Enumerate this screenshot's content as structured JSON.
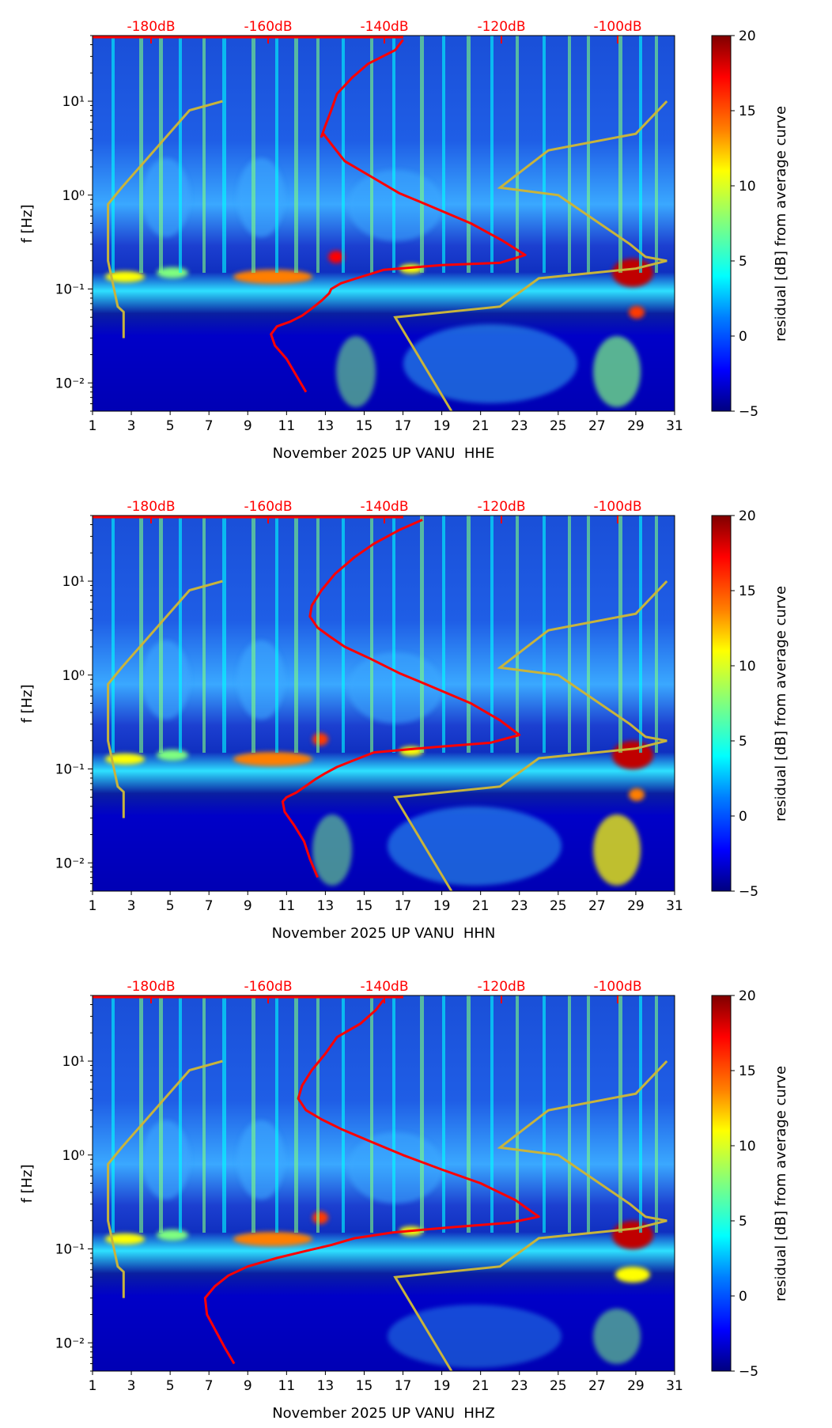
{
  "colors": {
    "db_scale": "#ff0000",
    "mean_curve": "#ff0000",
    "model_curves": "#c8b43c",
    "axis": "#000000",
    "colormap": [
      "#00007f",
      "#0000ff",
      "#007fff",
      "#00ffff",
      "#7fff7f",
      "#ffff00",
      "#ff7f00",
      "#ff0000",
      "#7f0000"
    ]
  },
  "chart_data": [
    {
      "type": "heatmap",
      "xlabel": "November 2025 UP VANU  HHE",
      "ylabel": "f [Hz]",
      "x_ticks": [
        "1",
        "3",
        "5",
        "7",
        "9",
        "11",
        "13",
        "15",
        "17",
        "19",
        "21",
        "23",
        "25",
        "27",
        "29",
        "31"
      ],
      "y_ticks": [
        "10⁻²",
        "10⁻¹",
        "10⁰",
        "10¹"
      ],
      "xlim": [
        1,
        31
      ],
      "ylim": [
        0.005,
        50
      ],
      "y_scale": "log",
      "db_scale_labels": [
        "-180dB",
        "-160dB",
        "-140dB",
        "-120dB",
        "-100dB"
      ],
      "colorbar": {
        "label": "residual [dB] from average curve",
        "range": [
          -5,
          20
        ],
        "ticks": [
          "−5",
          "0",
          "5",
          "10",
          "15",
          "20"
        ]
      },
      "mean_curve_x": [
        17,
        16.6,
        15.2,
        14.4,
        13.6,
        13.3,
        13.0,
        12.8,
        12.9,
        13.3,
        14.0,
        15.3,
        16.8,
        18.5,
        20.5,
        22.1,
        23.3,
        22.0,
        19.0,
        16.0,
        14.6,
        13.8,
        13.3,
        13.2,
        12.8,
        12.3,
        11.8,
        11.2,
        10.5,
        10.2,
        10.4,
        11.0,
        11.5,
        12.0
      ],
      "mean_curve_y": [
        45,
        35,
        25,
        18,
        12,
        8,
        5.5,
        4.2,
        4.5,
        3.5,
        2.3,
        1.6,
        1.05,
        0.75,
        0.5,
        0.33,
        0.23,
        0.19,
        0.18,
        0.16,
        0.13,
        0.115,
        0.1,
        0.09,
        0.075,
        0.062,
        0.052,
        0.045,
        0.04,
        0.033,
        0.025,
        0.018,
        0.012,
        0.008
      ]
    },
    {
      "type": "heatmap",
      "xlabel": "November 2025 UP VANU  HHN",
      "ylabel": "f [Hz]",
      "x_ticks": [
        "1",
        "3",
        "5",
        "7",
        "9",
        "11",
        "13",
        "15",
        "17",
        "19",
        "21",
        "23",
        "25",
        "27",
        "29",
        "31"
      ],
      "y_ticks": [
        "10⁻²",
        "10⁻¹",
        "10⁰",
        "10¹"
      ],
      "xlim": [
        1,
        31
      ],
      "ylim": [
        0.005,
        50
      ],
      "y_scale": "log",
      "db_scale_labels": [
        "-180dB",
        "-160dB",
        "-140dB",
        "-120dB",
        "-100dB"
      ],
      "colorbar": {
        "label": "residual [dB] from average curve",
        "range": [
          -5,
          20
        ],
        "ticks": [
          "−5",
          "0",
          "5",
          "10",
          "15",
          "20"
        ]
      },
      "mean_curve_x": [
        18,
        16.8,
        15.5,
        14.5,
        13.5,
        12.8,
        12.3,
        12.2,
        12.6,
        13.2,
        14.0,
        15.3,
        16.8,
        18.5,
        20.5,
        22.0,
        23.0,
        21.5,
        18.5,
        15.5,
        14.3,
        13.6,
        13.0,
        12.5,
        12.0,
        11.5,
        11.0,
        10.8,
        10.9,
        11.4,
        11.9,
        12.2,
        12.6
      ],
      "mean_curve_y": [
        45,
        35,
        25,
        18,
        12,
        8,
        5.5,
        4.2,
        3.2,
        2.6,
        2.0,
        1.5,
        1.05,
        0.75,
        0.5,
        0.33,
        0.23,
        0.19,
        0.17,
        0.15,
        0.12,
        0.105,
        0.09,
        0.078,
        0.066,
        0.056,
        0.05,
        0.045,
        0.035,
        0.025,
        0.017,
        0.011,
        0.007
      ]
    },
    {
      "type": "heatmap",
      "xlabel": "November 2025 UP VANU  HHZ",
      "ylabel": "f [Hz]",
      "x_ticks": [
        "1",
        "3",
        "5",
        "7",
        "9",
        "11",
        "13",
        "15",
        "17",
        "19",
        "21",
        "23",
        "25",
        "27",
        "29",
        "31"
      ],
      "y_ticks": [
        "10⁻²",
        "10⁻¹",
        "10⁰",
        "10¹"
      ],
      "xlim": [
        1,
        31
      ],
      "ylim": [
        0.005,
        50
      ],
      "y_scale": "log",
      "db_scale_labels": [
        "-180dB",
        "-160dB",
        "-140dB",
        "-120dB",
        "-100dB"
      ],
      "colorbar": {
        "label": "residual [dB] from average curve",
        "range": [
          -5,
          20
        ],
        "ticks": [
          "−5",
          "0",
          "5",
          "10",
          "15",
          "20"
        ]
      },
      "mean_curve_x": [
        16,
        15.6,
        14.8,
        13.6,
        13.0,
        12.3,
        11.8,
        11.6,
        12.0,
        12.8,
        13.8,
        15.3,
        17.0,
        19.0,
        21.0,
        22.8,
        24.0,
        22.5,
        19.5,
        16.5,
        14.5,
        13.3,
        12.0,
        10.5,
        9.0,
        8.0,
        7.3,
        6.8,
        6.9,
        7.3,
        7.8,
        8.3
      ],
      "mean_curve_y": [
        45,
        35,
        25,
        18,
        12,
        8,
        5.5,
        4.0,
        3.0,
        2.4,
        1.9,
        1.4,
        1.0,
        0.7,
        0.5,
        0.33,
        0.22,
        0.19,
        0.17,
        0.15,
        0.13,
        0.11,
        0.095,
        0.08,
        0.065,
        0.052,
        0.04,
        0.03,
        0.02,
        0.014,
        0.009,
        0.006
      ]
    }
  ],
  "model_curves": {
    "x": [
      [
        19.5,
        16.6,
        22.0,
        24.0,
        29.0,
        30.6,
        29.5,
        28.7,
        25.0,
        22.0,
        24.5,
        29.0,
        30.6
      ],
      [
        7.7,
        6.0,
        2.5,
        1.8,
        1.8,
        2.3,
        2.6,
        2.6
      ]
    ],
    "y": [
      [
        0.005,
        0.05,
        0.065,
        0.13,
        0.165,
        0.2,
        0.22,
        0.3,
        1.0,
        1.2,
        3.0,
        4.5,
        10.0
      ],
      [
        10,
        8,
        1.2,
        0.8,
        0.2,
        0.065,
        0.057,
        0.03
      ]
    ]
  }
}
